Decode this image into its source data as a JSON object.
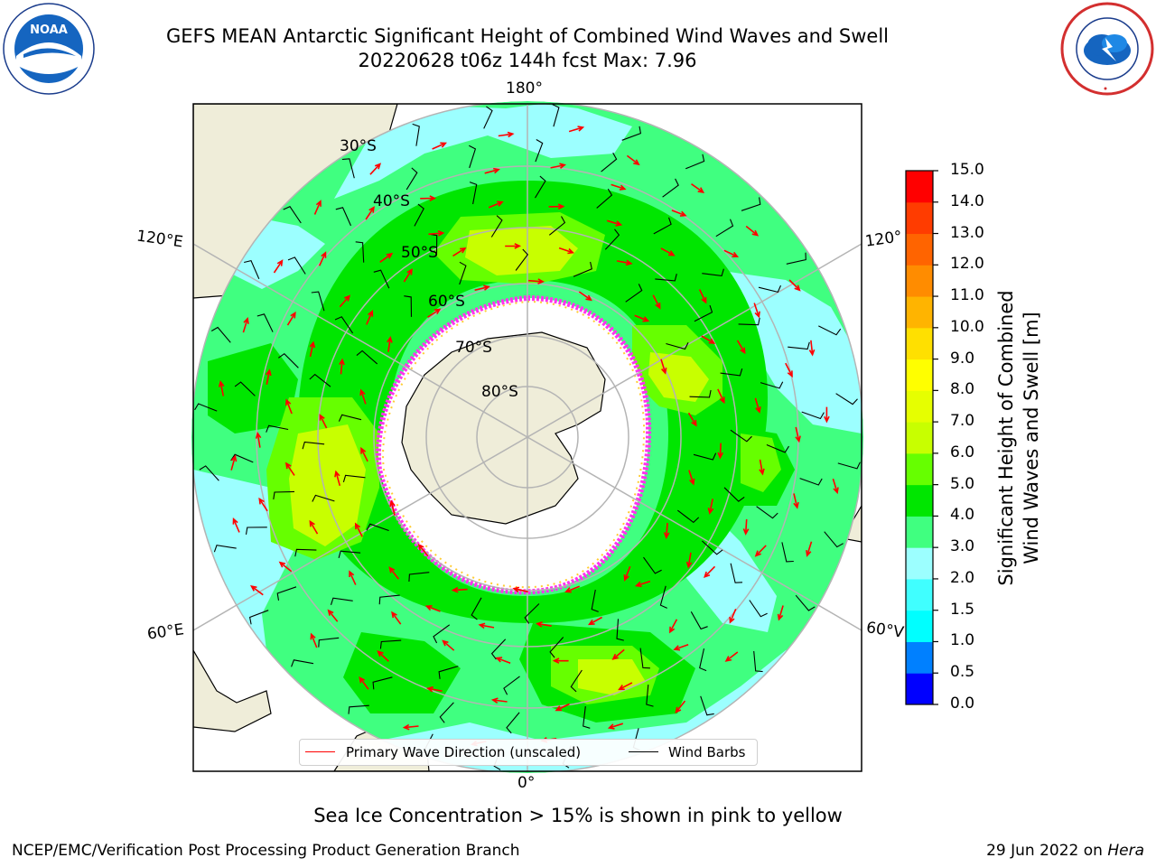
{
  "header": {
    "title_line1": "GEFS MEAN Antarctic Significant Height of Combined Wind Waves and Swell",
    "title_line2": "20220628 t06z 144h fcst   Max: 7.96"
  },
  "logos": {
    "left": "noaa-logo",
    "right": "nws-logo",
    "noaa_text": "NOAA"
  },
  "map": {
    "projection": "south-polar-stereographic",
    "longitude_labels": {
      "top": "180°",
      "bottom": "0°",
      "upper_left": "120°E",
      "lower_left": "60°E",
      "upper_right": "120°",
      "lower_right": "60°V"
    },
    "latitude_labels": [
      "30°S",
      "40°S",
      "50°S",
      "60°S",
      "70°S",
      "80°S"
    ],
    "colors": {
      "land": "#efedd9",
      "ocean_no_data": "#ffffff",
      "sea_ice": "#ff33ee",
      "graticule": "#b4b4b4"
    }
  },
  "legend": {
    "primary_wave_label": "Primary Wave Direction (unscaled)",
    "wind_barbs_label": "Wind Barbs",
    "primary_wave_color": "#ff0000",
    "wind_barbs_color": "#000000"
  },
  "colorbar": {
    "label_line1": "Significant Height of Combined",
    "label_line2": "Wind Waves and Swell [m]",
    "ticks": [
      "0.0",
      "0.5",
      "1.0",
      "1.5",
      "2.0",
      "3.0",
      "4.0",
      "5.0",
      "6.0",
      "7.0",
      "8.0",
      "9.0",
      "10.0",
      "11.0",
      "12.0",
      "13.0",
      "14.0",
      "15.0"
    ],
    "colors": [
      "#0000ff",
      "#0080ff",
      "#00ffff",
      "#40ffff",
      "#9cffff",
      "#40ff80",
      "#00e600",
      "#66ff00",
      "#c8ff00",
      "#e6ff00",
      "#ffff00",
      "#ffe000",
      "#ffb400",
      "#ff8c00",
      "#ff6400",
      "#ff3c00",
      "#ff0000"
    ]
  },
  "notes": {
    "sea_ice": "Sea Ice Concentration > 15% is shown in pink to yellow"
  },
  "footer": {
    "left": "NCEP/EMC/Verification Post Processing Product Generation Branch",
    "right_date": "29 Jun 2022 on",
    "right_host": "Hera"
  }
}
